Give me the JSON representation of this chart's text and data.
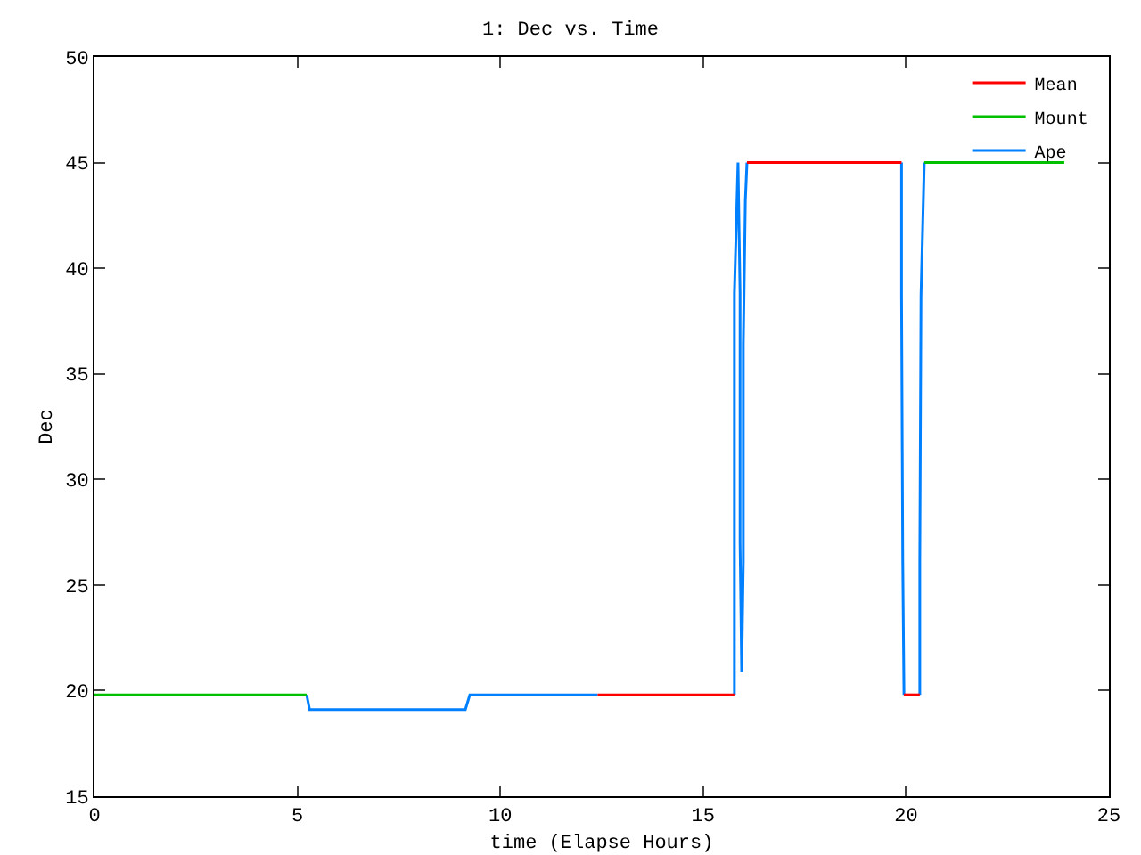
{
  "chart_data": {
    "type": "line",
    "title": "1: Dec vs. Time",
    "xlabel": "time (Elapse Hours)",
    "ylabel": "Dec",
    "xlim": [
      0,
      25
    ],
    "ylim": [
      15,
      50
    ],
    "xticks": [
      0,
      5,
      10,
      15,
      20,
      25
    ],
    "yticks": [
      15,
      20,
      25,
      30,
      35,
      40,
      45,
      50
    ],
    "grid": false,
    "legend": "top right",
    "marker": "none",
    "line_style": "solid",
    "series": [
      {
        "name": "Mean",
        "color": "#ff0000",
        "x": [
          12.4,
          15.77,
          15.78,
          16.08,
          19.89,
          19.9,
          19.95,
          20.34
        ],
        "values": [
          19.8,
          19.8,
          null,
          45,
          45,
          null,
          19.8,
          19.8
        ]
      },
      {
        "name": "Mount",
        "color": "#00c000",
        "x": [
          0,
          5.23,
          5.24,
          20.45,
          23.9
        ],
        "values": [
          19.8,
          19.8,
          null,
          45,
          45
        ]
      },
      {
        "name": "Ape",
        "color": "#0080ff",
        "x": [
          5.23,
          5.3,
          9.14,
          9.25,
          12.4,
          12.5,
          15.77,
          15.77,
          15.77,
          15.86,
          15.91,
          15.91,
          15.95,
          15.99,
          15.99,
          16.04,
          16.08,
          16.1,
          19.89,
          19.89,
          19.92,
          19.95,
          20.0,
          20.34,
          20.34,
          20.37,
          20.45
        ],
        "values": [
          19.8,
          19.1,
          19.1,
          19.8,
          19.8,
          null,
          19.8,
          26.1,
          38.8,
          45,
          38.8,
          27,
          20.9,
          26.1,
          36.4,
          43.2,
          45,
          null,
          45,
          38.7,
          26.1,
          19.8,
          null,
          19.8,
          26.1,
          38.7,
          45
        ]
      }
    ]
  }
}
